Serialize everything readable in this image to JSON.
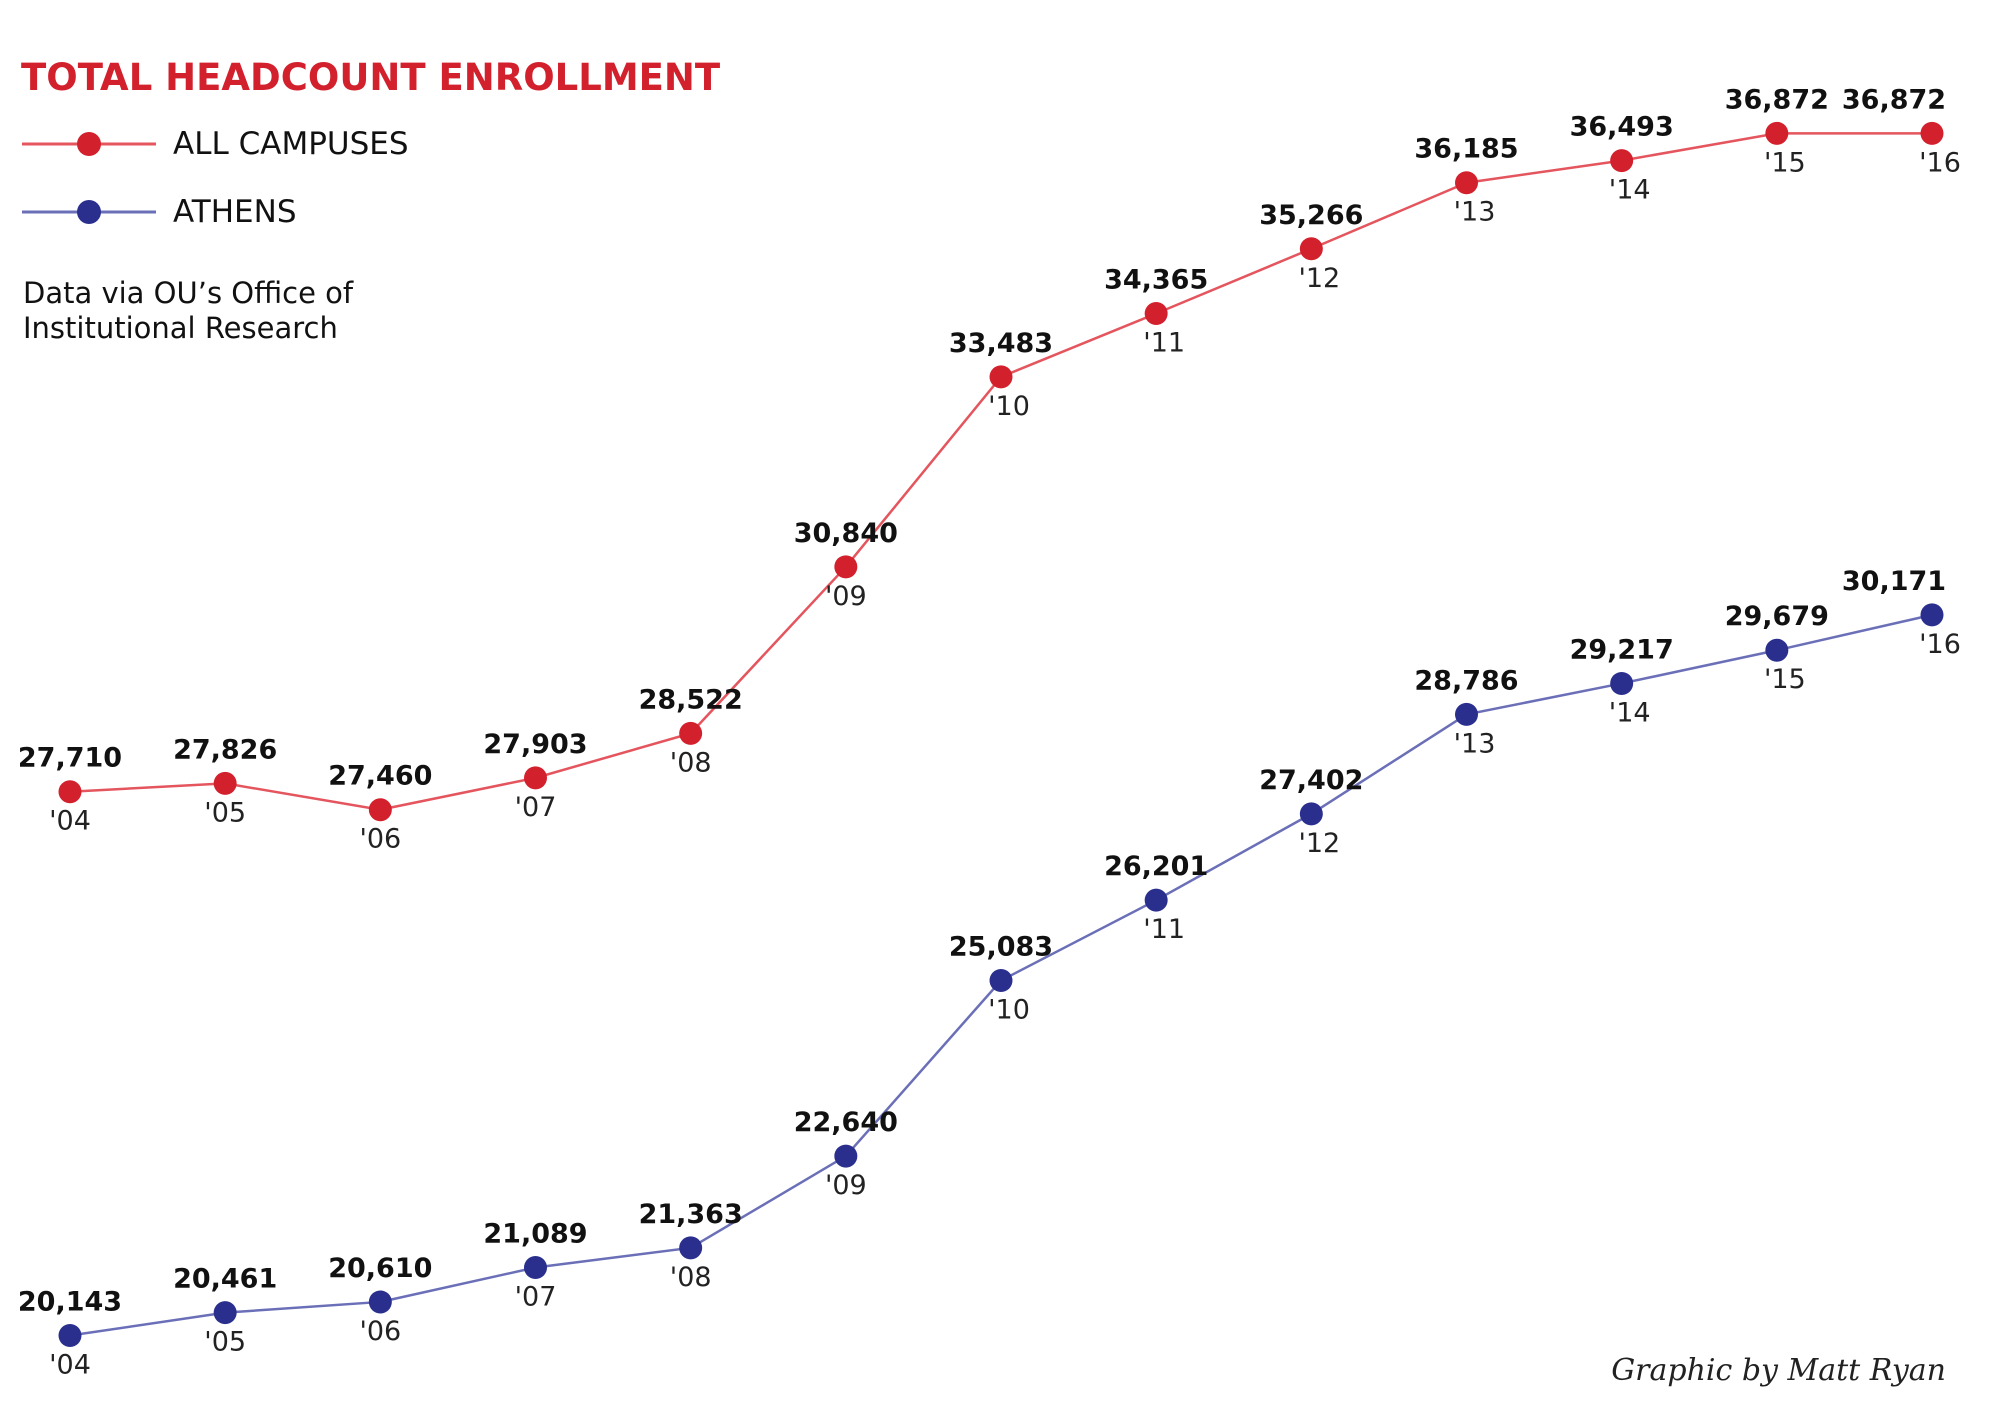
{
  "chart_data": {
    "type": "line",
    "title": "TOTAL HEADCOUNT ENROLLMENT",
    "source_note": [
      "Data via OU’s Office of",
      "Institutional Research"
    ],
    "credit": "Graphic by Matt Ryan",
    "x": [
      "'04",
      "'05",
      "'06",
      "'07",
      "'08",
      "'09",
      "'10",
      "'11",
      "'12",
      "'13",
      "'14",
      "'15",
      "'16"
    ],
    "legend_position": "top-left",
    "grid": false,
    "ylim": [
      20143,
      36872
    ],
    "series": [
      {
        "name": "ALL CAMPUSES",
        "color": "#d3202d",
        "line_color": "#e4555e",
        "values": [
          27710,
          27826,
          27460,
          27903,
          28522,
          30840,
          33483,
          34365,
          35266,
          36185,
          36493,
          36872,
          36872
        ],
        "labels": [
          "27,710",
          "27,826",
          "27,460",
          "27,903",
          "28,522",
          "30,840",
          "33,483",
          "34,365",
          "35,266",
          "36,185",
          "36,493",
          "36,872",
          "36,872"
        ]
      },
      {
        "name": "ATHENS",
        "color": "#2a2f8e",
        "line_color": "#6a6fb8",
        "values": [
          20143,
          20461,
          20610,
          21089,
          21363,
          22640,
          25083,
          26201,
          27402,
          28786,
          29217,
          29679,
          30171
        ],
        "labels": [
          "20,143",
          "20,461",
          "20,610",
          "21,089",
          "21,363",
          "22,640",
          "25,083",
          "26,201",
          "27,402",
          "28,786",
          "29,217",
          "29,679",
          "30,171"
        ]
      }
    ]
  }
}
